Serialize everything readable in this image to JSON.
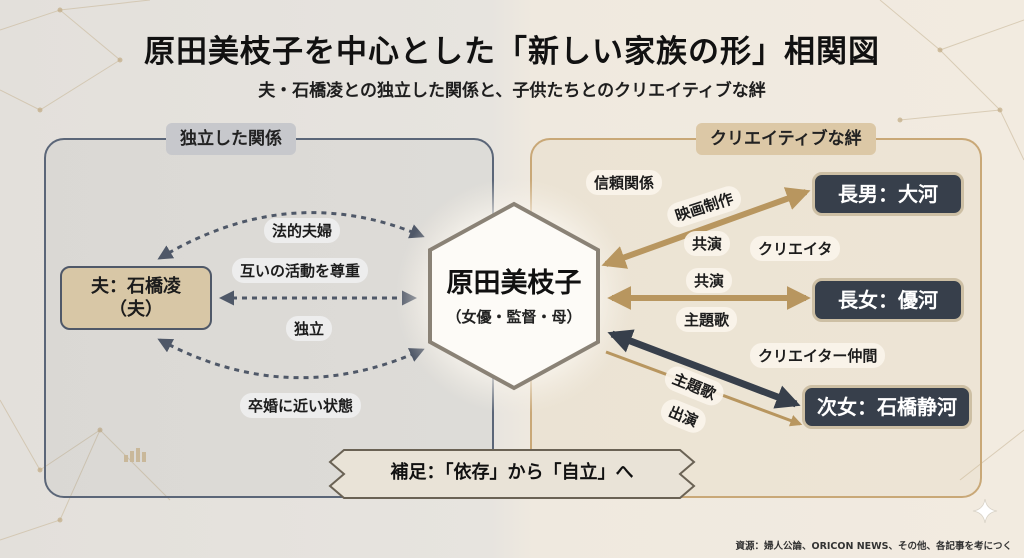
{
  "title": "原田美枝子を中心とした「新しい家族の形」相関図",
  "subtitle": "夫・石橋凌との独立した関係と、子供たちとのクリエイティブな絆",
  "left_panel": {
    "heading": "独立した関係"
  },
  "right_panel": {
    "heading": "クリエイティブな絆"
  },
  "center": {
    "name": "原田美枝子",
    "role": "（女優・監督・母）"
  },
  "husband": {
    "name": "夫：石橋凌",
    "note": "（夫）"
  },
  "children": {
    "son": "長男：大河",
    "daughter1": "長女：優河",
    "daughter2": "次女：石橋静河"
  },
  "left_labels": {
    "legal": "法的夫婦",
    "respect": "互いの活動を尊重",
    "independent": "独立",
    "near_divorce": "卒婚に近い状態"
  },
  "right_labels": {
    "trust": "信頼関係",
    "film": "映画制作",
    "costar1": "共演",
    "creator": "クリエイタ",
    "costar2": "共演",
    "theme_song1": "主題歌",
    "fellow_creator": "クリエイター仲間",
    "theme_song2": "主題歌",
    "appearance": "出演"
  },
  "note_banner": "補足：「依存」から「自立」へ",
  "footer": "資源：婦人公論、ORICON NEWS、その他、各記事を考につく",
  "colors": {
    "navy": "#373f4b",
    "gold": "#c9a877",
    "beige_node": "#d8c7a6",
    "slate_border": "#5b6678"
  }
}
